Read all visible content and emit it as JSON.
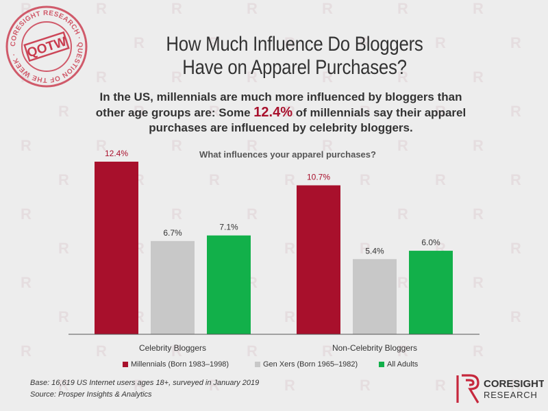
{
  "brand": {
    "stamp_ring_text": "CORESIGHT RESEARCH · QUESTION OF THE WEEK ·",
    "stamp_center": "QOTW",
    "logo_line1": "CORESIGHT",
    "logo_line2": "RESEARCH"
  },
  "title_line1": "How Much Influence Do Bloggers",
  "title_line2": "Have on Apparel Purchases?",
  "subtitle": {
    "line1": "In the US, millennials are much more influenced by bloggers than",
    "line2_before": "other age groups are: Some ",
    "line2_highlight": "12.4%",
    "line2_after": " of millennials say their apparel",
    "line3": "purchases are influenced by celebrity bloggers."
  },
  "colors": {
    "millennials": "#a8102c",
    "genx": "#c8c8c8",
    "adults": "#12b04a",
    "highlight": "#a8102c"
  },
  "chart_data": {
    "type": "bar",
    "title": "What influences your apparel purchases?",
    "categories": [
      "Celebrity Bloggers",
      "Non-Celebrity Bloggers"
    ],
    "series": [
      {
        "name": "Millennials (Born 1983–1998)",
        "values": [
          12.4,
          10.7
        ],
        "labels": [
          "12.4%",
          "10.7%"
        ],
        "color": "#a8102c"
      },
      {
        "name": "Gen Xers (Born 1965–1982)",
        "values": [
          6.7,
          5.4
        ],
        "labels": [
          "6.7%",
          "5.4%"
        ],
        "color": "#c8c8c8"
      },
      {
        "name": "All Adults",
        "values": [
          7.1,
          6.0
        ],
        "labels": [
          "7.1%",
          "6.0%"
        ],
        "color": "#12b04a"
      }
    ],
    "ylim": [
      0,
      12.4
    ],
    "grid": false,
    "legend_position": "bottom"
  },
  "footer": {
    "base": "Base: 16,619 US Internet users ages 18+, surveyed in January 2019",
    "source": "Source: Prosper Insights & Analytics"
  }
}
